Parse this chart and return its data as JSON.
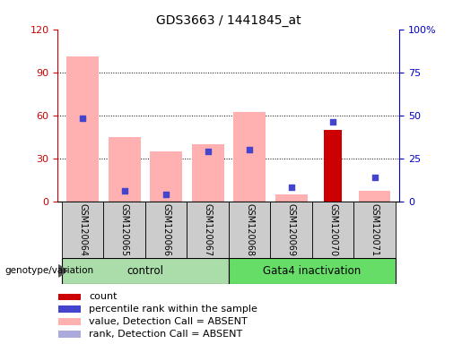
{
  "title": "GDS3663 / 1441845_at",
  "samples": [
    "GSM120064",
    "GSM120065",
    "GSM120066",
    "GSM120067",
    "GSM120068",
    "GSM120069",
    "GSM120070",
    "GSM120071"
  ],
  "pink_bar_values": [
    101,
    45,
    35,
    40,
    62,
    5,
    0,
    7
  ],
  "blue_square_values": [
    48,
    6,
    4,
    29,
    30,
    8,
    46,
    14
  ],
  "rank_absent_values": [
    48,
    6,
    4,
    29,
    30,
    8,
    46,
    14
  ],
  "red_bar_values": [
    0,
    0,
    0,
    0,
    0,
    0,
    50,
    0
  ],
  "ylim_left": [
    0,
    120
  ],
  "ylim_right": [
    0,
    100
  ],
  "yticks_left": [
    0,
    30,
    60,
    90,
    120
  ],
  "ytick_labels_left": [
    "0",
    "30",
    "60",
    "90",
    "120"
  ],
  "yticks_right": [
    0,
    25,
    50,
    75,
    100
  ],
  "ytick_labels_right": [
    "0",
    "25",
    "50",
    "75",
    "100%"
  ],
  "left_axis_color": "#cc0000",
  "right_axis_color": "#0000cc",
  "pink_color": "#ffb0b0",
  "blue_sq_color": "#4444cc",
  "rank_absent_color": "#aaaadd",
  "red_bar_color": "#cc0000",
  "control_color": "#aaddaa",
  "gata4_color": "#66dd66",
  "legend_items": [
    {
      "label": "count",
      "color": "#cc0000"
    },
    {
      "label": "percentile rank within the sample",
      "color": "#4444cc"
    },
    {
      "label": "value, Detection Call = ABSENT",
      "color": "#ffb0b0"
    },
    {
      "label": "rank, Detection Call = ABSENT",
      "color": "#aaaadd"
    }
  ],
  "grid_lines": [
    30,
    60,
    90
  ],
  "bar_width": 0.35
}
